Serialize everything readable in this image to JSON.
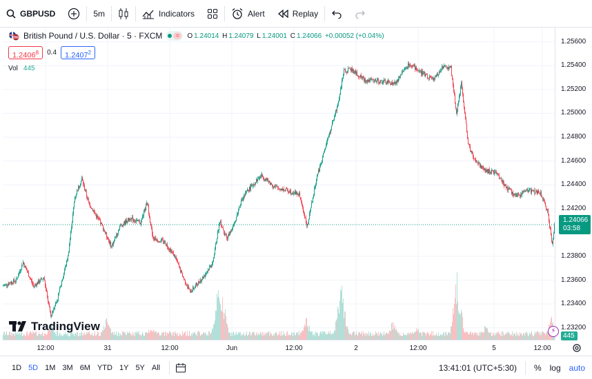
{
  "toolbar": {
    "symbol": "GBPUSD",
    "interval": "5m",
    "indicators_label": "Indicators",
    "alert_label": "Alert",
    "replay_label": "Replay"
  },
  "legend": {
    "title": "British Pound / U.S. Dollar · 5 · FXCM",
    "open_label": "O",
    "open": "1.24014",
    "high_label": "H",
    "high": "1.24079",
    "low_label": "L",
    "low": "1.24001",
    "close_label": "C",
    "close": "1.24066",
    "change": "+0.00052 (+0.04%)",
    "sell_price_main": "1.2406",
    "sell_price_sup": "8",
    "spread": "0.4",
    "buy_price_main": "1.2407",
    "buy_price_sup": "2",
    "volume_label": "Vol",
    "volume_value": "445"
  },
  "price_scale": {
    "last_price": "1.24066",
    "countdown": "03:58",
    "volume_badge": "445"
  },
  "logo_text": "TradingView",
  "bottom": {
    "ranges": [
      "1D",
      "5D",
      "1M",
      "3M",
      "6M",
      "YTD",
      "1Y",
      "5Y",
      "All"
    ],
    "active_range": "5D",
    "clock": "13:41:01 (UTC+5:30)",
    "percent_label": "%",
    "log_label": "log",
    "auto_label": "auto"
  },
  "colors": {
    "up": "#089981",
    "down": "#f23645",
    "vol_up": "#9fd9cf",
    "vol_down": "#f7b0b4",
    "accent": "#2962ff"
  },
  "chart_data": {
    "type": "candlestick",
    "symbol": "GBPUSD",
    "ylim": [
      1.231,
      1.2572
    ],
    "yticks": [
      1.256,
      1.254,
      1.252,
      1.25,
      1.248,
      1.246,
      1.244,
      1.242,
      1.238,
      1.236,
      1.234,
      1.232
    ],
    "ytick_labels": [
      "1.25600",
      "1.25400",
      "1.25200",
      "1.25000",
      "1.24800",
      "1.24600",
      "1.24400",
      "1.24200",
      "1.23800",
      "1.23600",
      "1.23400",
      "1.23200"
    ],
    "xtick_labels": [
      "12:00",
      "31",
      "12:00",
      "Jun",
      "12:00",
      "2",
      "12:00",
      "5",
      "12:00"
    ],
    "xtick_index": [
      62,
      152,
      242,
      332,
      422,
      512,
      602,
      712,
      782
    ],
    "n_bars": 800,
    "price_path": [
      [
        0,
        1.2355
      ],
      [
        20,
        1.236
      ],
      [
        30,
        1.2375
      ],
      [
        45,
        1.2355
      ],
      [
        60,
        1.2362
      ],
      [
        70,
        1.233
      ],
      [
        80,
        1.2345
      ],
      [
        95,
        1.238
      ],
      [
        105,
        1.243
      ],
      [
        115,
        1.2445
      ],
      [
        125,
        1.2425
      ],
      [
        145,
        1.2405
      ],
      [
        158,
        1.2388
      ],
      [
        170,
        1.2405
      ],
      [
        185,
        1.2412
      ],
      [
        200,
        1.2408
      ],
      [
        210,
        1.2425
      ],
      [
        218,
        1.2395
      ],
      [
        235,
        1.2392
      ],
      [
        250,
        1.238
      ],
      [
        260,
        1.2365
      ],
      [
        272,
        1.235
      ],
      [
        290,
        1.2362
      ],
      [
        305,
        1.2375
      ],
      [
        315,
        1.241
      ],
      [
        325,
        1.2395
      ],
      [
        335,
        1.2405
      ],
      [
        345,
        1.2425
      ],
      [
        355,
        1.2435
      ],
      [
        375,
        1.2448
      ],
      [
        395,
        1.2438
      ],
      [
        415,
        1.2435
      ],
      [
        430,
        1.2432
      ],
      [
        442,
        1.2405
      ],
      [
        455,
        1.2445
      ],
      [
        470,
        1.2475
      ],
      [
        485,
        1.2505
      ],
      [
        495,
        1.2535
      ],
      [
        505,
        1.2537
      ],
      [
        525,
        1.2528
      ],
      [
        545,
        1.2527
      ],
      [
        570,
        1.2525
      ],
      [
        580,
        1.2535
      ],
      [
        590,
        1.2542
      ],
      [
        605,
        1.2535
      ],
      [
        625,
        1.2528
      ],
      [
        640,
        1.254
      ],
      [
        650,
        1.2538
      ],
      [
        658,
        1.25
      ],
      [
        665,
        1.2525
      ],
      [
        675,
        1.2475
      ],
      [
        685,
        1.246
      ],
      [
        700,
        1.2452
      ],
      [
        715,
        1.245
      ],
      [
        730,
        1.2438
      ],
      [
        745,
        1.243
      ],
      [
        760,
        1.2436
      ],
      [
        780,
        1.2433
      ],
      [
        790,
        1.2418
      ],
      [
        797,
        1.239
      ],
      [
        800,
        1.24066
      ]
    ],
    "volume_spikes": [
      [
        70,
        0.25
      ],
      [
        150,
        0.35
      ],
      [
        215,
        0.25
      ],
      [
        312,
        0.85
      ],
      [
        318,
        0.7
      ],
      [
        440,
        0.35
      ],
      [
        490,
        0.95
      ],
      [
        565,
        0.3
      ],
      [
        600,
        0.2
      ],
      [
        658,
        1.0
      ],
      [
        700,
        0.25
      ],
      [
        795,
        0.35
      ]
    ],
    "last_price": 1.24066,
    "volume_last": 445
  }
}
